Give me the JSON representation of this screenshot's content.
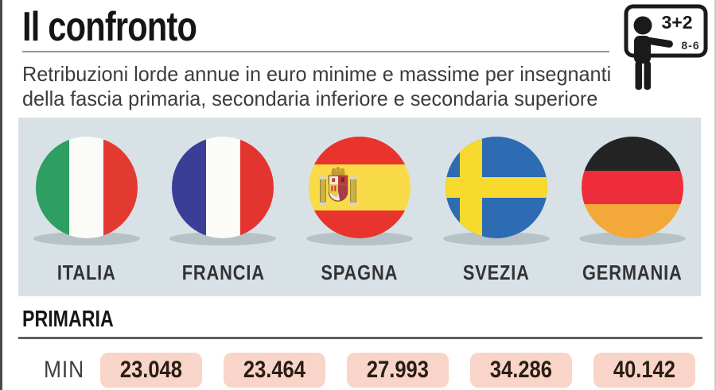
{
  "header": {
    "title": "Il confronto",
    "subtitle_lines": [
      "Retribuzioni lorde annue in euro minime e massime per insegnanti",
      "della fascia primaria, secondaria inferiore e secondaria superiore"
    ],
    "board": {
      "top_text": "3+2",
      "bottom_text": "8-6"
    }
  },
  "flags_band": {
    "bg": "#d8e2e6",
    "shadow_color": "#b7c2c7"
  },
  "countries": [
    {
      "label": "ITALIA",
      "flag": {
        "type": "vertical",
        "colors": [
          "#2f9e62",
          "#fbfbf8",
          "#e23a31"
        ]
      }
    },
    {
      "label": "FRANCIA",
      "flag": {
        "type": "vertical",
        "colors": [
          "#3a3e96",
          "#fbfbf8",
          "#e4342f"
        ]
      }
    },
    {
      "label": "SPAGNA",
      "flag": {
        "type": "horizontal",
        "colors": [
          "#e8342c",
          "#f9da49",
          "#e8342c"
        ],
        "sizes": [
          27,
          46,
          27
        ],
        "emblem": true
      }
    },
    {
      "label": "SVEZIA",
      "flag": {
        "type": "nordic",
        "bg": "#2d6cb3",
        "cross": "#f8d92e"
      }
    },
    {
      "label": "GERMANIA",
      "flag": {
        "type": "horizontal",
        "colors": [
          "#242424",
          "#ee2d3a",
          "#f3a83a"
        ],
        "sizes": [
          33.4,
          33.3,
          33.3
        ]
      }
    }
  ],
  "section": {
    "label": "PRIMARIA"
  },
  "min_row": {
    "label": "MIN",
    "box_bg": "#f8d5c8",
    "values": [
      "23.048",
      "23.464",
      "27.993",
      "34.286",
      "40.142"
    ]
  },
  "chart_data": {
    "type": "table",
    "title": "Il confronto",
    "subtitle": "Retribuzioni lorde annue in euro minime e massime per insegnanti della fascia primaria, secondaria inferiore e secondaria superiore",
    "section": "PRIMARIA",
    "unit": "euro (retribuzione lorda annua)",
    "categories": [
      "ITALIA",
      "FRANCIA",
      "SPAGNA",
      "SVEZIA",
      "GERMANIA"
    ],
    "series": [
      {
        "name": "MIN",
        "values": [
          23048,
          23464,
          27993,
          34286,
          40142
        ]
      }
    ]
  }
}
